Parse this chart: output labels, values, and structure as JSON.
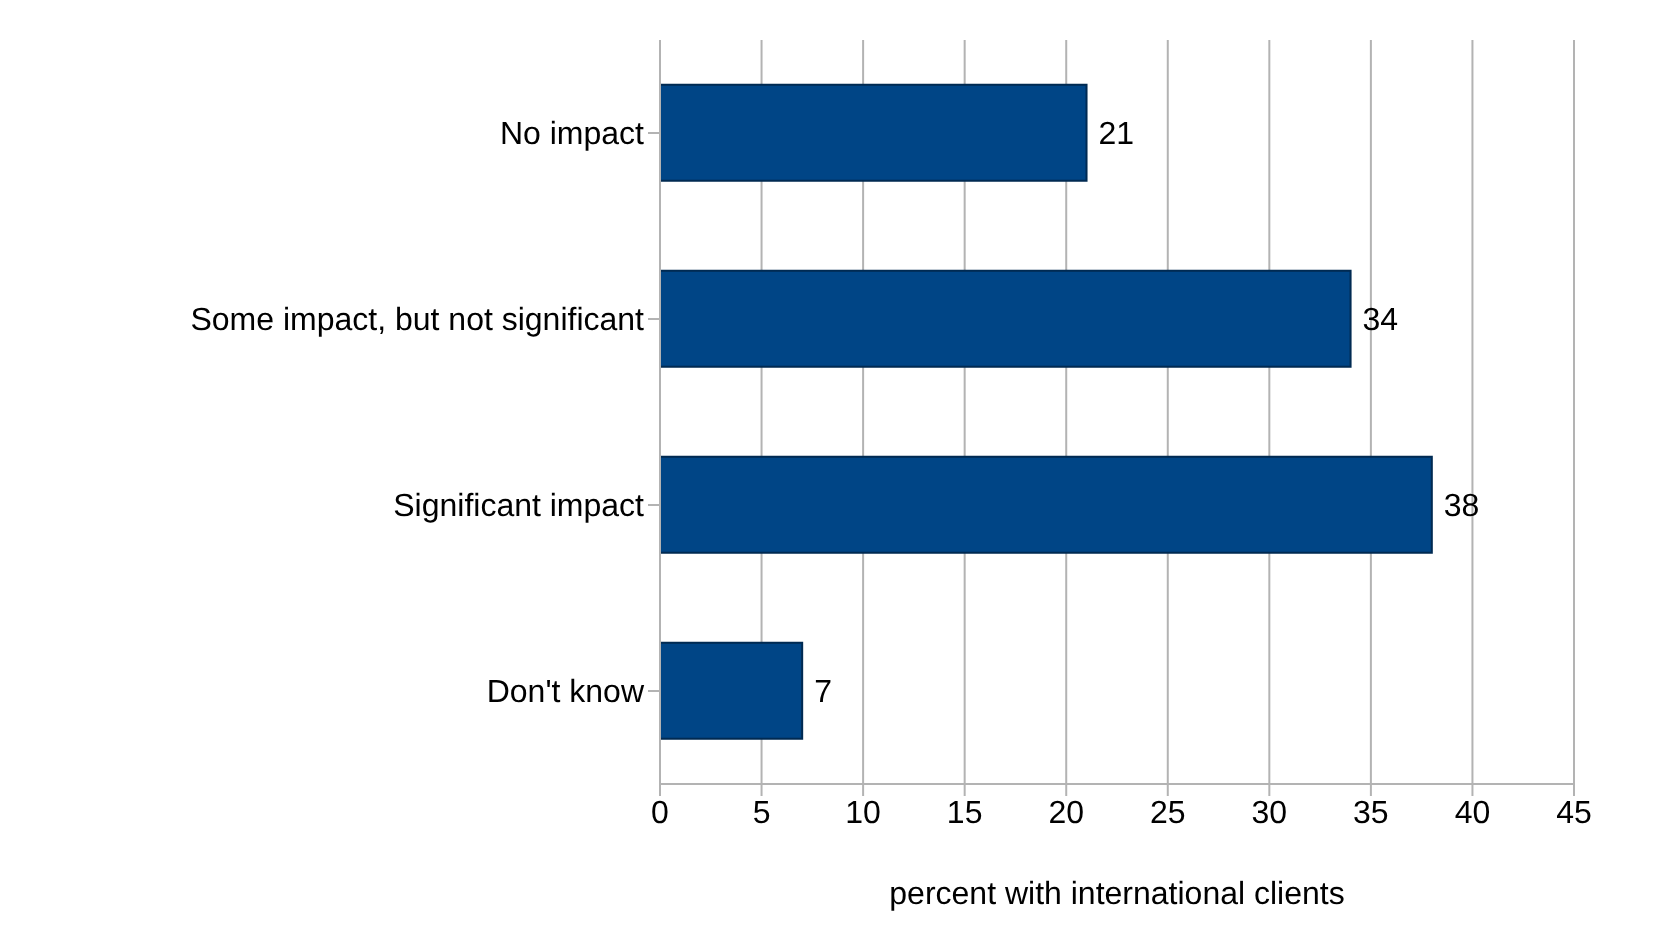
{
  "chart_data": {
    "type": "bar",
    "orientation": "horizontal",
    "categories": [
      "No impact",
      "Some impact, but not significant",
      "Significant impact",
      "Don't know"
    ],
    "values": [
      21,
      34,
      38,
      7
    ],
    "color": "#004586",
    "data_labels": true,
    "xlim": [
      0,
      45
    ],
    "xticks": [
      0,
      5,
      10,
      15,
      20,
      25,
      30,
      35,
      40,
      45
    ],
    "grid": "x",
    "xlabel": "percent with international clients"
  }
}
